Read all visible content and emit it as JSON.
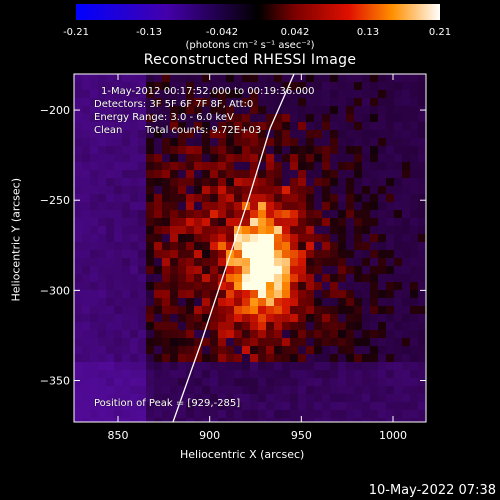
{
  "colorbar": {
    "ticks": [
      "-0.21",
      "-0.13",
      "-0.042",
      "0.042",
      "0.13",
      "0.21"
    ],
    "tick_values": [
      -0.21,
      -0.13,
      -0.042,
      0.042,
      0.13,
      0.21
    ],
    "units": "(photons cm⁻² s⁻¹ asec⁻²)"
  },
  "chart_data": {
    "type": "heatmap",
    "title": "Reconstructed RHESSI Image",
    "xlabel": "Heliocentric X (arcsec)",
    "ylabel": "Heliocentric Y (arcsec)",
    "xlim": [
      826,
      1018
    ],
    "ylim": [
      -373,
      -180
    ],
    "xticks": [
      850,
      900,
      950,
      1000
    ],
    "yticks": [
      -200,
      -250,
      -300,
      -350
    ],
    "value_range": [
      -0.21,
      0.21
    ],
    "peak_position": [
      929,
      -285
    ],
    "limb_curve": [
      [
        880,
        -373
      ],
      [
        895,
        -330
      ],
      [
        908,
        -290
      ],
      [
        921,
        -250
      ],
      [
        933,
        -210
      ],
      [
        946,
        -180
      ]
    ],
    "annotations": {
      "time_range": "1-May-2012 00:17:52.000 to 00:19:36.000",
      "detectors": "Detectors: 3F 5F 6F 7F 8F, Att:0",
      "energy": "Energy Range: 3.0 - 6.0 keV",
      "method": "Clean",
      "counts": "Total counts: 9.72E+03",
      "peak": "Position of Peak = [929,-285]"
    }
  },
  "footer": {
    "timestamp": "10-May-2022 07:38"
  }
}
